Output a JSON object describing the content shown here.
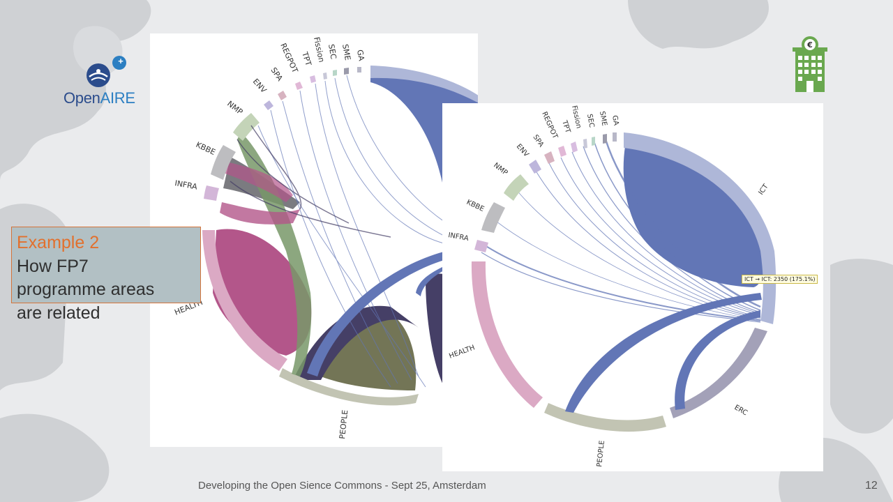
{
  "logo": {
    "text_open": "Open",
    "text_air": "AIRE",
    "badge": "+"
  },
  "callout": {
    "title": "Example 2",
    "lines": [
      "How FP7",
      "programme areas",
      "are related"
    ]
  },
  "footer": {
    "text": "Developing the Open Sience Commons - Sept 25, Amsterdam",
    "page_number": "12"
  },
  "tooltip": {
    "text": "ICT → ICT: 2350 (175.1%)"
  },
  "left_diagram": {
    "labels": [
      "GA",
      "SME",
      "SEC",
      "Fission",
      "TPT",
      "REGPOT",
      "SPA",
      "ENV",
      "NMP",
      "KBBE",
      "INFRA",
      "HEALTH",
      "PEOPLE"
    ]
  },
  "right_diagram": {
    "labels": [
      "GA",
      "SME",
      "SEC",
      "Fission",
      "TPT",
      "REGPOT",
      "SPA",
      "ENV",
      "NMP",
      "KBBE",
      "INFRA",
      "ICT",
      "HEALTH",
      "ERC",
      "PEOPLE"
    ]
  },
  "colors": {
    "ict": "#6276b6",
    "ict_arc": "#aeb7d8",
    "health": "#b3568a",
    "health_arc": "#dba9c4",
    "people": "#737556",
    "people_arc": "#c2c4b3",
    "kbbe": "#7b7b80",
    "nmp": "#789868",
    "erc": "#a3a1b8",
    "dark": "#453f66",
    "callout_border": "#d4743a",
    "callout_title": "#e2702d"
  }
}
